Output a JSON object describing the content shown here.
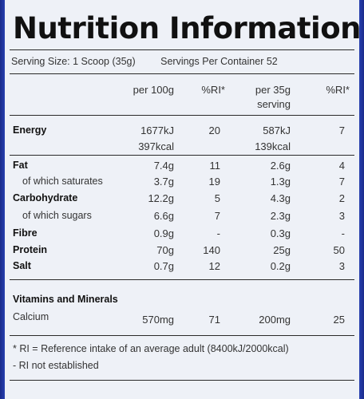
{
  "title": "Nutrition Information",
  "serving": {
    "size": "Serving Size: 1 Scoop (35g)",
    "per_container": "Servings Per Container 52"
  },
  "headers": {
    "per100": "per 100g",
    "ri1": "%RI*",
    "per35": "per 35g",
    "per35b": "serving",
    "ri2": "%RI*"
  },
  "rows": [
    {
      "label": "Energy",
      "sub": false,
      "v1": "1677kJ",
      "r1": "20",
      "v2": "587kJ",
      "r2": "7",
      "v1b": "397kcal",
      "v2b": "139kcal"
    },
    {
      "label": "Fat",
      "sub": false,
      "v1": "7.4g",
      "r1": "11",
      "v2": "2.6g",
      "r2": "4"
    },
    {
      "label": "of which saturates",
      "sub": true,
      "v1": "3.7g",
      "r1": "19",
      "v2": "1.3g",
      "r2": "7"
    },
    {
      "label": "Carbohydrate",
      "sub": false,
      "v1": "12.2g",
      "r1": "5",
      "v2": "4.3g",
      "r2": "2"
    },
    {
      "label": "of which sugars",
      "sub": true,
      "v1": "6.6g",
      "r1": "7",
      "v2": "2.3g",
      "r2": "3"
    },
    {
      "label": "Fibre",
      "sub": false,
      "v1": "0.9g",
      "r1": "-",
      "v2": "0.3g",
      "r2": "-"
    },
    {
      "label": "Protein",
      "sub": false,
      "v1": "70g",
      "r1": "140",
      "v2": "25g",
      "r2": "50"
    },
    {
      "label": "Salt",
      "sub": false,
      "v1": "0.7g",
      "r1": "12",
      "v2": "0.2g",
      "r2": "3"
    }
  ],
  "vitamins": {
    "heading": "Vitamins and Minerals",
    "label": "Calcium",
    "v1": "570mg",
    "r1": "71",
    "v2": "200mg",
    "r2": "25"
  },
  "footnotes": [
    "* RI = Reference intake of an average adult (8400kJ/2000kcal)",
    "- RI not established"
  ]
}
